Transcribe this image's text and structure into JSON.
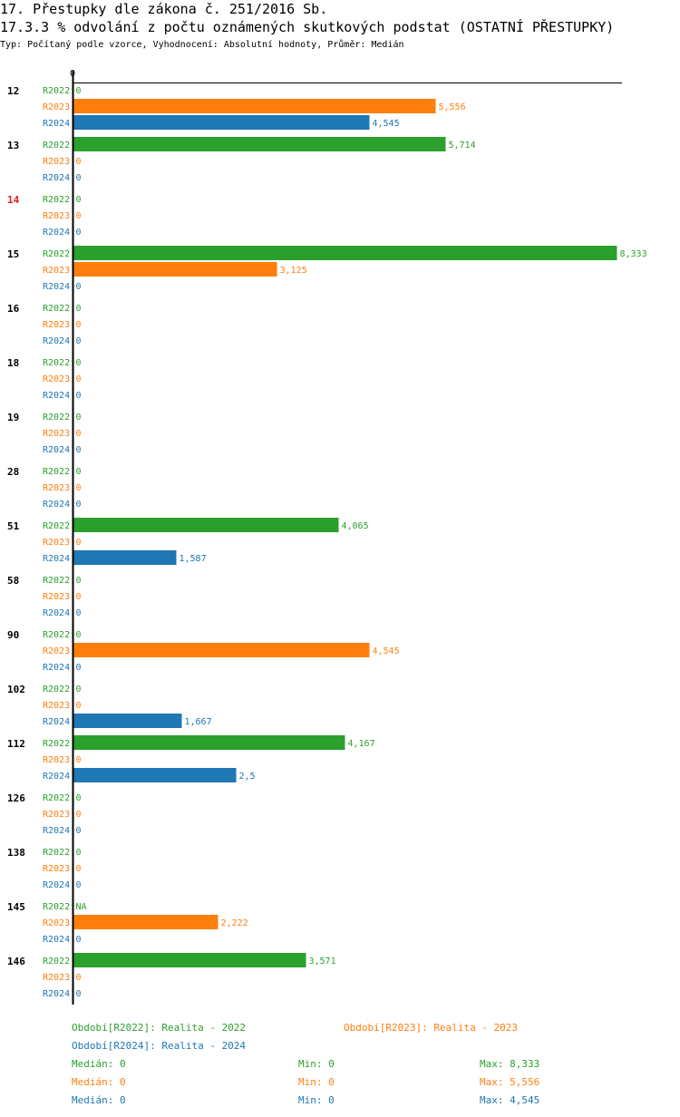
{
  "header": {
    "title": "17. Přestupky dle zákona č. 251/2016 Sb.",
    "subtitle": "17.3.3 % odvolání z počtu oznámených skutkových podstat (OSTATNÍ PŘESTUPKY)",
    "meta": "Typ: Počítaný podle vzorce, Vyhodnocení: Absolutní hodnoty, Průměr: Medián"
  },
  "colors": {
    "R2022": "#2ca02c",
    "R2023": "#ff7f0e",
    "R2024": "#1f77b4",
    "highlight": "#e41a1c",
    "axis": "#000000"
  },
  "chart_data": {
    "type": "bar",
    "orientation": "horizontal",
    "zero_label": "0",
    "xlim": [
      0,
      8.333
    ],
    "categories": [
      "12",
      "13",
      "14",
      "15",
      "16",
      "18",
      "19",
      "28",
      "51",
      "58",
      "90",
      "102",
      "112",
      "126",
      "138",
      "145",
      "146"
    ],
    "highlighted_categories": [
      "14"
    ],
    "series": [
      {
        "name": "R2022",
        "values": [
          0,
          5.714,
          0,
          8.333,
          0,
          0,
          0,
          0,
          4.065,
          0,
          0,
          0,
          4.167,
          0,
          0,
          null,
          3.571
        ],
        "labels": [
          "0",
          "5,714",
          "0",
          "8,333",
          "0",
          "0",
          "0",
          "0",
          "4,065",
          "0",
          "0",
          "0",
          "4,167",
          "0",
          "0",
          "NA",
          "3,571"
        ]
      },
      {
        "name": "R2023",
        "values": [
          5.556,
          0,
          0,
          3.125,
          0,
          0,
          0,
          0,
          0,
          0,
          4.545,
          0,
          0,
          0,
          0,
          2.222,
          0
        ],
        "labels": [
          "5,556",
          "0",
          "0",
          "3,125",
          "0",
          "0",
          "0",
          "0",
          "0",
          "0",
          "4,545",
          "0",
          "0",
          "0",
          "0",
          "2,222",
          "0"
        ]
      },
      {
        "name": "R2024",
        "values": [
          4.545,
          0,
          0,
          0,
          0,
          0,
          0,
          0,
          1.587,
          0,
          0,
          1.667,
          2.5,
          0,
          0,
          0,
          0
        ],
        "labels": [
          "4,545",
          "0",
          "0",
          "0",
          "0",
          "0",
          "0",
          "0",
          "1,587",
          "0",
          "0",
          "1,667",
          "2,5",
          "0",
          "0",
          "0",
          "0"
        ]
      }
    ]
  },
  "legend": {
    "periods": [
      {
        "series": "R2022",
        "text": "Období[R2022]: Realita - 2022"
      },
      {
        "series": "R2023",
        "text": "Období[R2023]: Realita - 2023"
      },
      {
        "series": "R2024",
        "text": "Období[R2024]: Realita - 2024"
      }
    ],
    "stats": [
      {
        "series": "R2022",
        "median": "Medián: 0",
        "min": "Min: 0",
        "max": "Max: 8,333"
      },
      {
        "series": "R2023",
        "median": "Medián: 0",
        "min": "Min: 0",
        "max": "Max: 5,556"
      },
      {
        "series": "R2024",
        "median": "Medián: 0",
        "min": "Min: 0",
        "max": "Max: 4,545"
      }
    ]
  }
}
